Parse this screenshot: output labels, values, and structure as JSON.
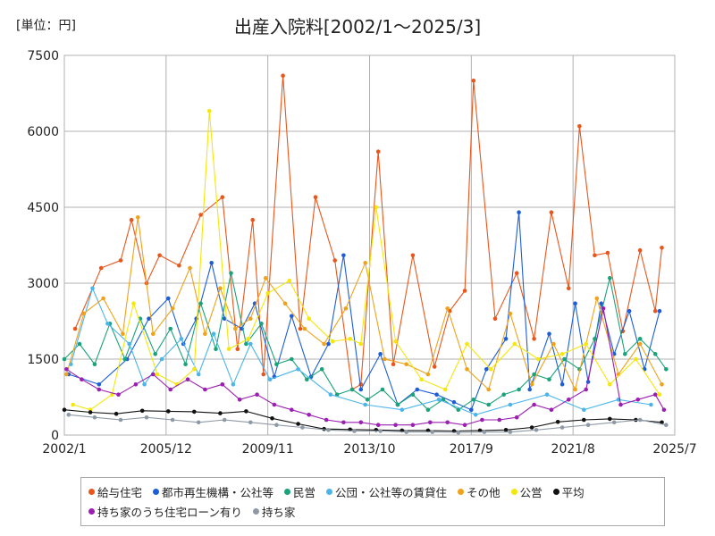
{
  "chart_data": {
    "type": "line",
    "title": "出産入院料[2002/1～2025/3]",
    "unit_label": "[単位：円]",
    "x_start": "2002/1",
    "x_end": "2025/7",
    "x_ticks": [
      "2002/1",
      "2005/12",
      "2009/11",
      "2013/10",
      "2017/9",
      "2021/8",
      "2025/7"
    ],
    "ylim": [
      0,
      7500
    ],
    "y_ticks": [
      0,
      1500,
      3000,
      4500,
      6000,
      7500
    ],
    "grid": true,
    "legend_position": "bottom",
    "series": [
      {
        "name": "給与住宅",
        "color": "#e8561b",
        "key": "kyuyo",
        "x": [
          "2002/6",
          "2003/6",
          "2004/3",
          "2004/8",
          "2005/3",
          "2005/9",
          "2006/6",
          "2007/4",
          "2008/2",
          "2008/9",
          "2009/4",
          "2009/9",
          "2010/6",
          "2011/2",
          "2011/9",
          "2012/6",
          "2013/2",
          "2013/6",
          "2014/2",
          "2014/9",
          "2015/6",
          "2016/4",
          "2016/11",
          "2017/6",
          "2017/10",
          "2018/8",
          "2019/6",
          "2020/2",
          "2020/10",
          "2021/6",
          "2021/11",
          "2022/6",
          "2022/12",
          "2023/7",
          "2024/3",
          "2024/10",
          "2025/1"
        ],
        "y": [
          2100,
          3300,
          3450,
          4250,
          3000,
          3550,
          3350,
          4350,
          4700,
          1700,
          4250,
          1200,
          7100,
          2100,
          4700,
          3450,
          900,
          1000,
          5600,
          1400,
          3550,
          1350,
          2450,
          2850,
          7000,
          2300,
          3200,
          1900,
          4400,
          2900,
          6100,
          3550,
          3600,
          2050,
          3650,
          2450,
          3700
        ]
      },
      {
        "name": "都市再生機構・公社等",
        "color": "#1d5ed8",
        "key": "toshi",
        "x": [
          "2002/3",
          "2003/5",
          "2004/6",
          "2005/4",
          "2006/1",
          "2006/8",
          "2007/2",
          "2007/9",
          "2008/3",
          "2008/11",
          "2009/5",
          "2010/2",
          "2010/10",
          "2011/7",
          "2012/3",
          "2012/10",
          "2013/6",
          "2014/3",
          "2014/11",
          "2015/8",
          "2016/5",
          "2017/1",
          "2017/9",
          "2018/4",
          "2019/1",
          "2019/7",
          "2019/12",
          "2020/9",
          "2021/3",
          "2021/9",
          "2022/3",
          "2022/9",
          "2023/3",
          "2023/10",
          "2024/5",
          "2024/12"
        ],
        "y": [
          1200,
          1000,
          1500,
          2300,
          2700,
          1800,
          2300,
          3400,
          2300,
          2100,
          2600,
          1150,
          2350,
          1150,
          1800,
          3550,
          900,
          1600,
          600,
          900,
          800,
          650,
          500,
          1300,
          1900,
          4400,
          900,
          2000,
          1000,
          2600,
          1050,
          2600,
          1600,
          2450,
          1300,
          2450
        ]
      },
      {
        "name": "民営",
        "color": "#1aa37a",
        "key": "minei",
        "x": [
          "2002/1",
          "2002/8",
          "2003/3",
          "2003/10",
          "2004/5",
          "2004/12",
          "2005/7",
          "2006/2",
          "2006/9",
          "2007/4",
          "2007/11",
          "2008/6",
          "2009/1",
          "2009/8",
          "2010/3",
          "2010/10",
          "2011/5",
          "2011/12",
          "2012/7",
          "2013/2",
          "2013/9",
          "2014/4",
          "2014/11",
          "2015/6",
          "2016/1",
          "2016/8",
          "2017/3",
          "2017/10",
          "2018/5",
          "2018/12",
          "2019/7",
          "2020/2",
          "2020/9",
          "2021/4",
          "2021/11",
          "2022/6",
          "2023/1",
          "2023/8",
          "2024/3",
          "2024/10",
          "2025/3"
        ],
        "y": [
          1500,
          1800,
          1400,
          2200,
          1500,
          2300,
          1600,
          2100,
          1400,
          2600,
          1700,
          3200,
          1800,
          2200,
          1400,
          1500,
          1100,
          1300,
          800,
          900,
          700,
          900,
          600,
          800,
          500,
          700,
          500,
          700,
          600,
          800,
          900,
          1200,
          1100,
          1500,
          1300,
          1900,
          3100,
          1600,
          1900,
          1600,
          1300
        ]
      },
      {
        "name": "公団・公社等の賃貸住",
        "color": "#4bb5ea",
        "key": "kodan",
        "x": [
          "2002/4",
          "2003/2",
          "2003/9",
          "2004/7",
          "2005/2",
          "2005/10",
          "2006/7",
          "2007/3",
          "2007/10",
          "2008/7",
          "2009/3",
          "2009/12",
          "2011/1",
          "2012/4",
          "2013/8",
          "2015/1",
          "2016/6",
          "2017/11",
          "2019/3",
          "2020/8",
          "2022/1",
          "2023/5",
          "2024/8"
        ],
        "y": [
          1400,
          2900,
          2200,
          1800,
          1000,
          1500,
          1900,
          1200,
          2000,
          1000,
          1800,
          1100,
          1300,
          800,
          600,
          500,
          700,
          400,
          600,
          800,
          500,
          700,
          600
        ]
      },
      {
        "name": "その他",
        "color": "#f0a21b",
        "key": "sonota",
        "x": [
          "2002/2",
          "2002/10",
          "2003/7",
          "2004/4",
          "2004/11",
          "2005/6",
          "2006/3",
          "2006/11",
          "2007/6",
          "2008/1",
          "2008/8",
          "2009/3",
          "2009/10",
          "2010/7",
          "2011/4",
          "2012/1",
          "2012/11",
          "2013/8",
          "2014/5",
          "2015/3",
          "2016/1",
          "2016/10",
          "2017/7",
          "2018/5",
          "2019/3",
          "2020/1",
          "2020/11",
          "2021/9",
          "2022/7",
          "2023/5",
          "2024/3",
          "2025/1"
        ],
        "y": [
          1200,
          2400,
          2700,
          2000,
          4300,
          2000,
          2500,
          3300,
          2000,
          2900,
          2100,
          2300,
          3100,
          2600,
          2100,
          1800,
          2500,
          3400,
          1500,
          1400,
          1200,
          2500,
          1300,
          900,
          2400,
          1000,
          1800,
          900,
          2700,
          1200,
          1800,
          1000
        ]
      },
      {
        "name": "公営",
        "color": "#f5e60c",
        "key": "koei",
        "x": [
          "2002/5",
          "2003/1",
          "2003/11",
          "2004/9",
          "2005/8",
          "2006/5",
          "2007/1",
          "2007/8",
          "2008/5",
          "2009/2",
          "2009/11",
          "2010/9",
          "2011/6",
          "2012/5",
          "2013/1",
          "2013/6",
          "2014/1",
          "2014/10",
          "2015/10",
          "2016/9",
          "2017/7",
          "2018/6",
          "2019/5",
          "2020/4",
          "2021/3",
          "2022/2",
          "2023/1",
          "2024/1",
          "2024/12"
        ],
        "y": [
          600,
          500,
          800,
          2600,
          1200,
          1000,
          1300,
          6400,
          1700,
          1900,
          2800,
          3050,
          2300,
          1850,
          1900,
          1800,
          4500,
          1850,
          1100,
          900,
          1800,
          1300,
          1800,
          1500,
          1600,
          1800,
          1000,
          1500,
          800
        ]
      },
      {
        "name": "平均",
        "color": "#111111",
        "key": "heikin",
        "x": [
          "2002/1",
          "2003/1",
          "2004/1",
          "2005/1",
          "2006/1",
          "2007/1",
          "2008/1",
          "2009/1",
          "2010/1",
          "2011/1",
          "2012/1",
          "2013/1",
          "2014/1",
          "2015/1",
          "2016/1",
          "2017/1",
          "2018/1",
          "2019/1",
          "2020/1",
          "2021/1",
          "2022/1",
          "2023/1",
          "2024/1",
          "2025/1"
        ],
        "y": [
          500,
          450,
          420,
          480,
          470,
          460,
          430,
          470,
          330,
          220,
          120,
          110,
          100,
          90,
          90,
          80,
          90,
          100,
          150,
          260,
          300,
          320,
          300,
          250
        ]
      },
      {
        "name": "持ち家のうち住宅ローン有り",
        "color": "#9b1fb0",
        "key": "loan",
        "x": [
          "2002/2",
          "2002/9",
          "2003/5",
          "2004/2",
          "2004/10",
          "2005/6",
          "2006/2",
          "2006/10",
          "2007/6",
          "2008/2",
          "2008/10",
          "2009/6",
          "2010/2",
          "2010/10",
          "2011/6",
          "2012/2",
          "2012/10",
          "2013/6",
          "2014/2",
          "2014/10",
          "2015/6",
          "2016/2",
          "2016/10",
          "2017/6",
          "2018/2",
          "2018/10",
          "2019/6",
          "2020/2",
          "2020/10",
          "2021/6",
          "2022/2",
          "2022/10",
          "2023/6",
          "2024/2",
          "2024/10",
          "2025/2"
        ],
        "y": [
          1300,
          1100,
          900,
          800,
          1000,
          1200,
          900,
          1100,
          900,
          1000,
          700,
          800,
          600,
          500,
          400,
          300,
          250,
          250,
          200,
          200,
          200,
          250,
          250,
          200,
          300,
          300,
          350,
          600,
          500,
          700,
          900,
          2500,
          600,
          700,
          800,
          500
        ]
      },
      {
        "name": "持ち家",
        "color": "#8e99a6",
        "key": "mochiie",
        "x": [
          "2002/3",
          "2003/3",
          "2004/3",
          "2005/3",
          "2006/3",
          "2007/3",
          "2008/3",
          "2009/3",
          "2010/3",
          "2011/3",
          "2012/3",
          "2013/3",
          "2014/3",
          "2015/3",
          "2016/3",
          "2017/3",
          "2018/3",
          "2019/3",
          "2020/3",
          "2021/3",
          "2022/3",
          "2023/3",
          "2024/3",
          "2025/3"
        ],
        "y": [
          400,
          350,
          300,
          350,
          300,
          250,
          300,
          250,
          200,
          150,
          100,
          80,
          80,
          60,
          60,
          50,
          60,
          60,
          100,
          150,
          200,
          250,
          300,
          200
        ]
      }
    ]
  }
}
